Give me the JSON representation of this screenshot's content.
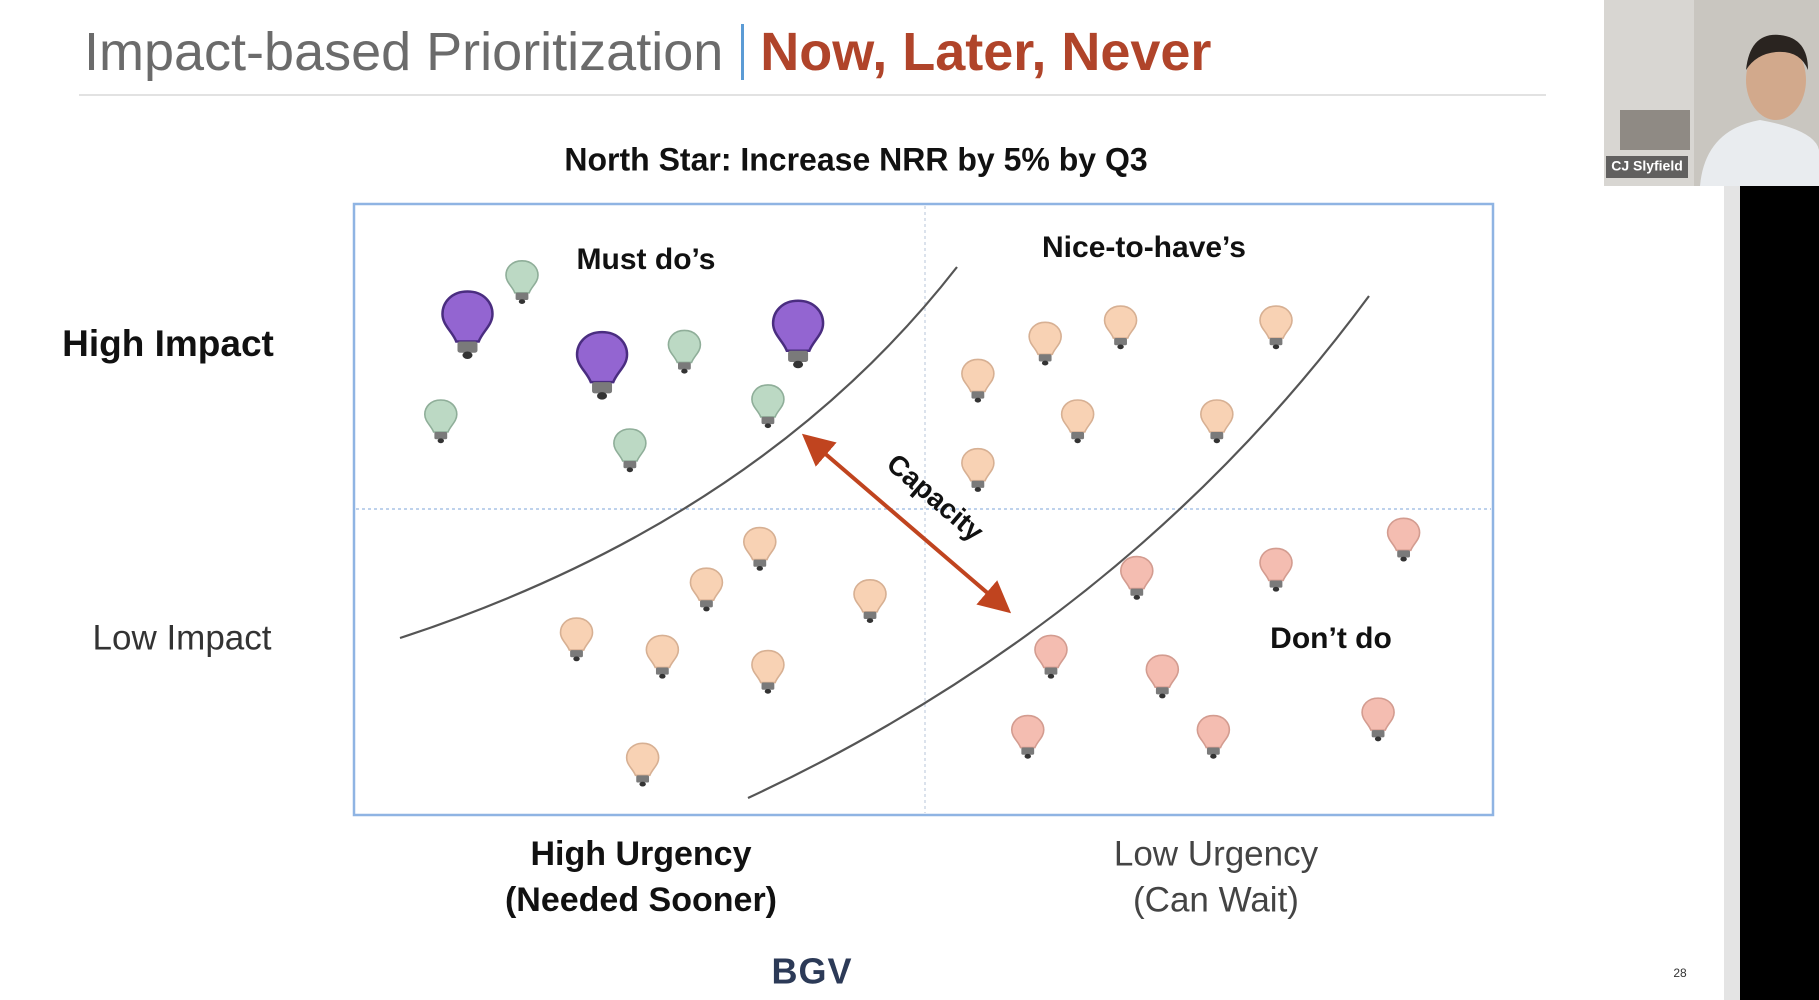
{
  "header": {
    "title_main": "Impact-based Prioritization",
    "title_accent": "Now, Later, Never"
  },
  "north_star": "North Star:  Increase NRR by 5% by Q3",
  "quadrants": {
    "top_left": "Must do’s",
    "top_right": "Nice-to-have’s",
    "bottom_right": "Don’t do"
  },
  "y_axis": {
    "high": "High Impact",
    "low": "Low Impact"
  },
  "x_axis": {
    "high": {
      "line1": "High Urgency",
      "line2": "(Needed Sooner)"
    },
    "low": {
      "line1": "Low Urgency",
      "line2": "(Can Wait)"
    }
  },
  "arrow_label": "Capacity",
  "footer": {
    "logo": "BGV",
    "page": "28"
  },
  "video": {
    "participant": "CJ Slyfield"
  }
}
